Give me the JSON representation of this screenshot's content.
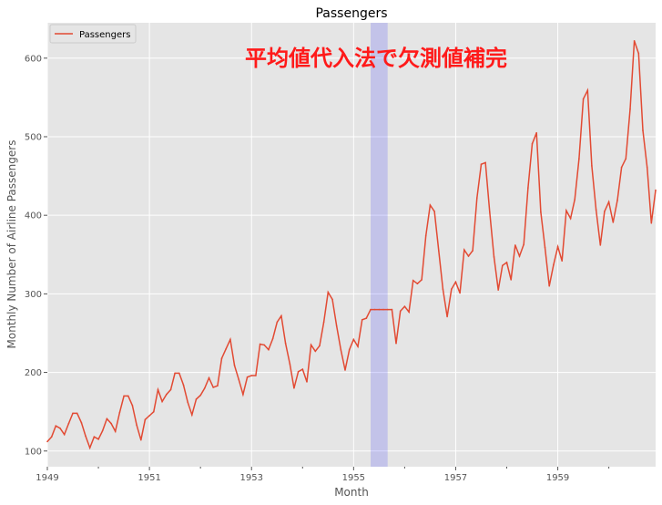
{
  "chart_data": {
    "type": "line",
    "title": "Passengers",
    "xlabel": "Month",
    "ylabel": "Monthly Number of Airline Passengers",
    "annotation": "平均値代入法で欠測値補完",
    "legend": {
      "placement": "top-left",
      "entries": [
        "Passengers"
      ]
    },
    "grid": true,
    "x_start": "1949-01",
    "x_end": "1960-12",
    "xlim": [
      "1949-01",
      "1960-12"
    ],
    "ylim": [
      80,
      645
    ],
    "x_ticks": [
      "1949",
      "1951",
      "1953",
      "1955",
      "1957",
      "1959"
    ],
    "y_ticks": [
      100,
      200,
      300,
      400,
      500,
      600
    ],
    "highlight_span": {
      "from": "1955-05",
      "to": "1955-09"
    },
    "series": [
      {
        "name": "Passengers",
        "color": "#E24A33",
        "values": [
          112,
          118,
          132,
          129,
          121,
          135,
          148,
          148,
          136,
          119,
          104,
          118,
          115,
          126,
          141,
          135,
          125,
          149,
          170,
          170,
          158,
          133,
          114,
          140,
          145,
          150,
          178,
          163,
          172,
          178,
          199,
          199,
          184,
          162,
          146,
          166,
          171,
          180,
          193,
          181,
          183,
          218,
          230,
          242,
          209,
          191,
          172,
          194,
          196,
          196,
          236,
          235,
          229,
          243,
          264,
          272,
          237,
          211,
          180,
          201,
          204,
          188,
          235,
          227,
          234,
          264,
          302,
          293,
          259,
          229,
          203,
          229,
          242,
          233,
          267,
          269,
          280,
          280,
          280,
          280,
          280,
          280,
          237,
          278,
          284,
          277,
          317,
          313,
          318,
          374,
          413,
          405,
          355,
          306,
          271,
          306,
          315,
          301,
          356,
          348,
          355,
          422,
          465,
          467,
          404,
          347,
          305,
          336,
          340,
          318,
          362,
          348,
          363,
          435,
          491,
          505,
          404,
          359,
          310,
          337,
          360,
          342,
          406,
          396,
          420,
          472,
          548,
          559,
          463,
          407,
          362,
          405,
          417,
          391,
          419,
          461,
          472,
          535,
          622,
          606,
          508,
          461,
          390,
          432
        ]
      }
    ],
    "highlight_color": "#0000ff"
  }
}
